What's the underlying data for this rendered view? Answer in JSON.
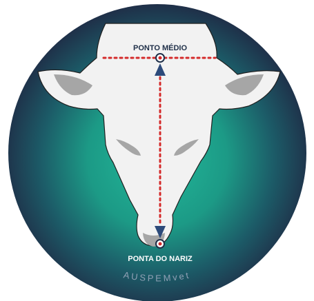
{
  "labels": {
    "top_point": "PONTO MÉDIO",
    "bottom_point": "PONTA DO NARIZ",
    "watermark": "AUSPEMvet"
  },
  "colors": {
    "background_center": "#22b99a",
    "background_mid": "#1a7f7a",
    "background_edge": "#1f2f48",
    "head_fill": "#f2f2f2",
    "inner_ear": "#a6a6a6",
    "eye": "#a6a6a6",
    "nose": "#a6a6a6",
    "marker_line": "#d42a2a",
    "arrow": "#2c4a7a",
    "point_ring": "#1f2f48",
    "watermark": "#8fa0b4"
  },
  "icons": {
    "top_arrow": "arrow-up-icon",
    "bottom_arrow": "arrow-down-icon"
  }
}
